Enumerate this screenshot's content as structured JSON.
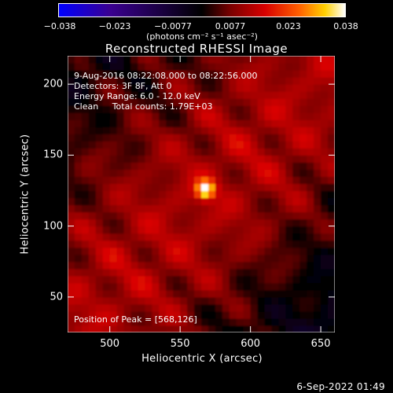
{
  "colorbar": {
    "ticks": [
      "−0.038",
      "−0.023",
      "−0.0077",
      "0.0077",
      "0.023",
      "0.038"
    ],
    "unit": "(photons cm⁻² s⁻¹ asec⁻²)"
  },
  "chart_data": {
    "type": "heatmap",
    "title": "Reconstructed RHESSI Image",
    "xlabel": "Heliocentric X (arcsec)",
    "ylabel": "Heliocentric Y (arcsec)",
    "xlim": [
      470,
      660
    ],
    "ylim": [
      25,
      220
    ],
    "x_ticks": [
      500,
      550,
      600,
      650
    ],
    "y_ticks": [
      50,
      100,
      150,
      200
    ],
    "colormap_range": [
      -0.038,
      0.038
    ],
    "peak": [
      568,
      126
    ],
    "annotations": [
      "9-Aug-2016 08:22:08.000 to 08:22:56.000",
      "Detectors: 3F 8F, Att 0",
      "Energy Range: 6.0 - 12.0 keV",
      "Clean     Total counts: 1.79E+03",
      "Position of Peak = [568,126]"
    ]
  },
  "footer": {
    "date": "6-Sep-2022 01:49"
  }
}
